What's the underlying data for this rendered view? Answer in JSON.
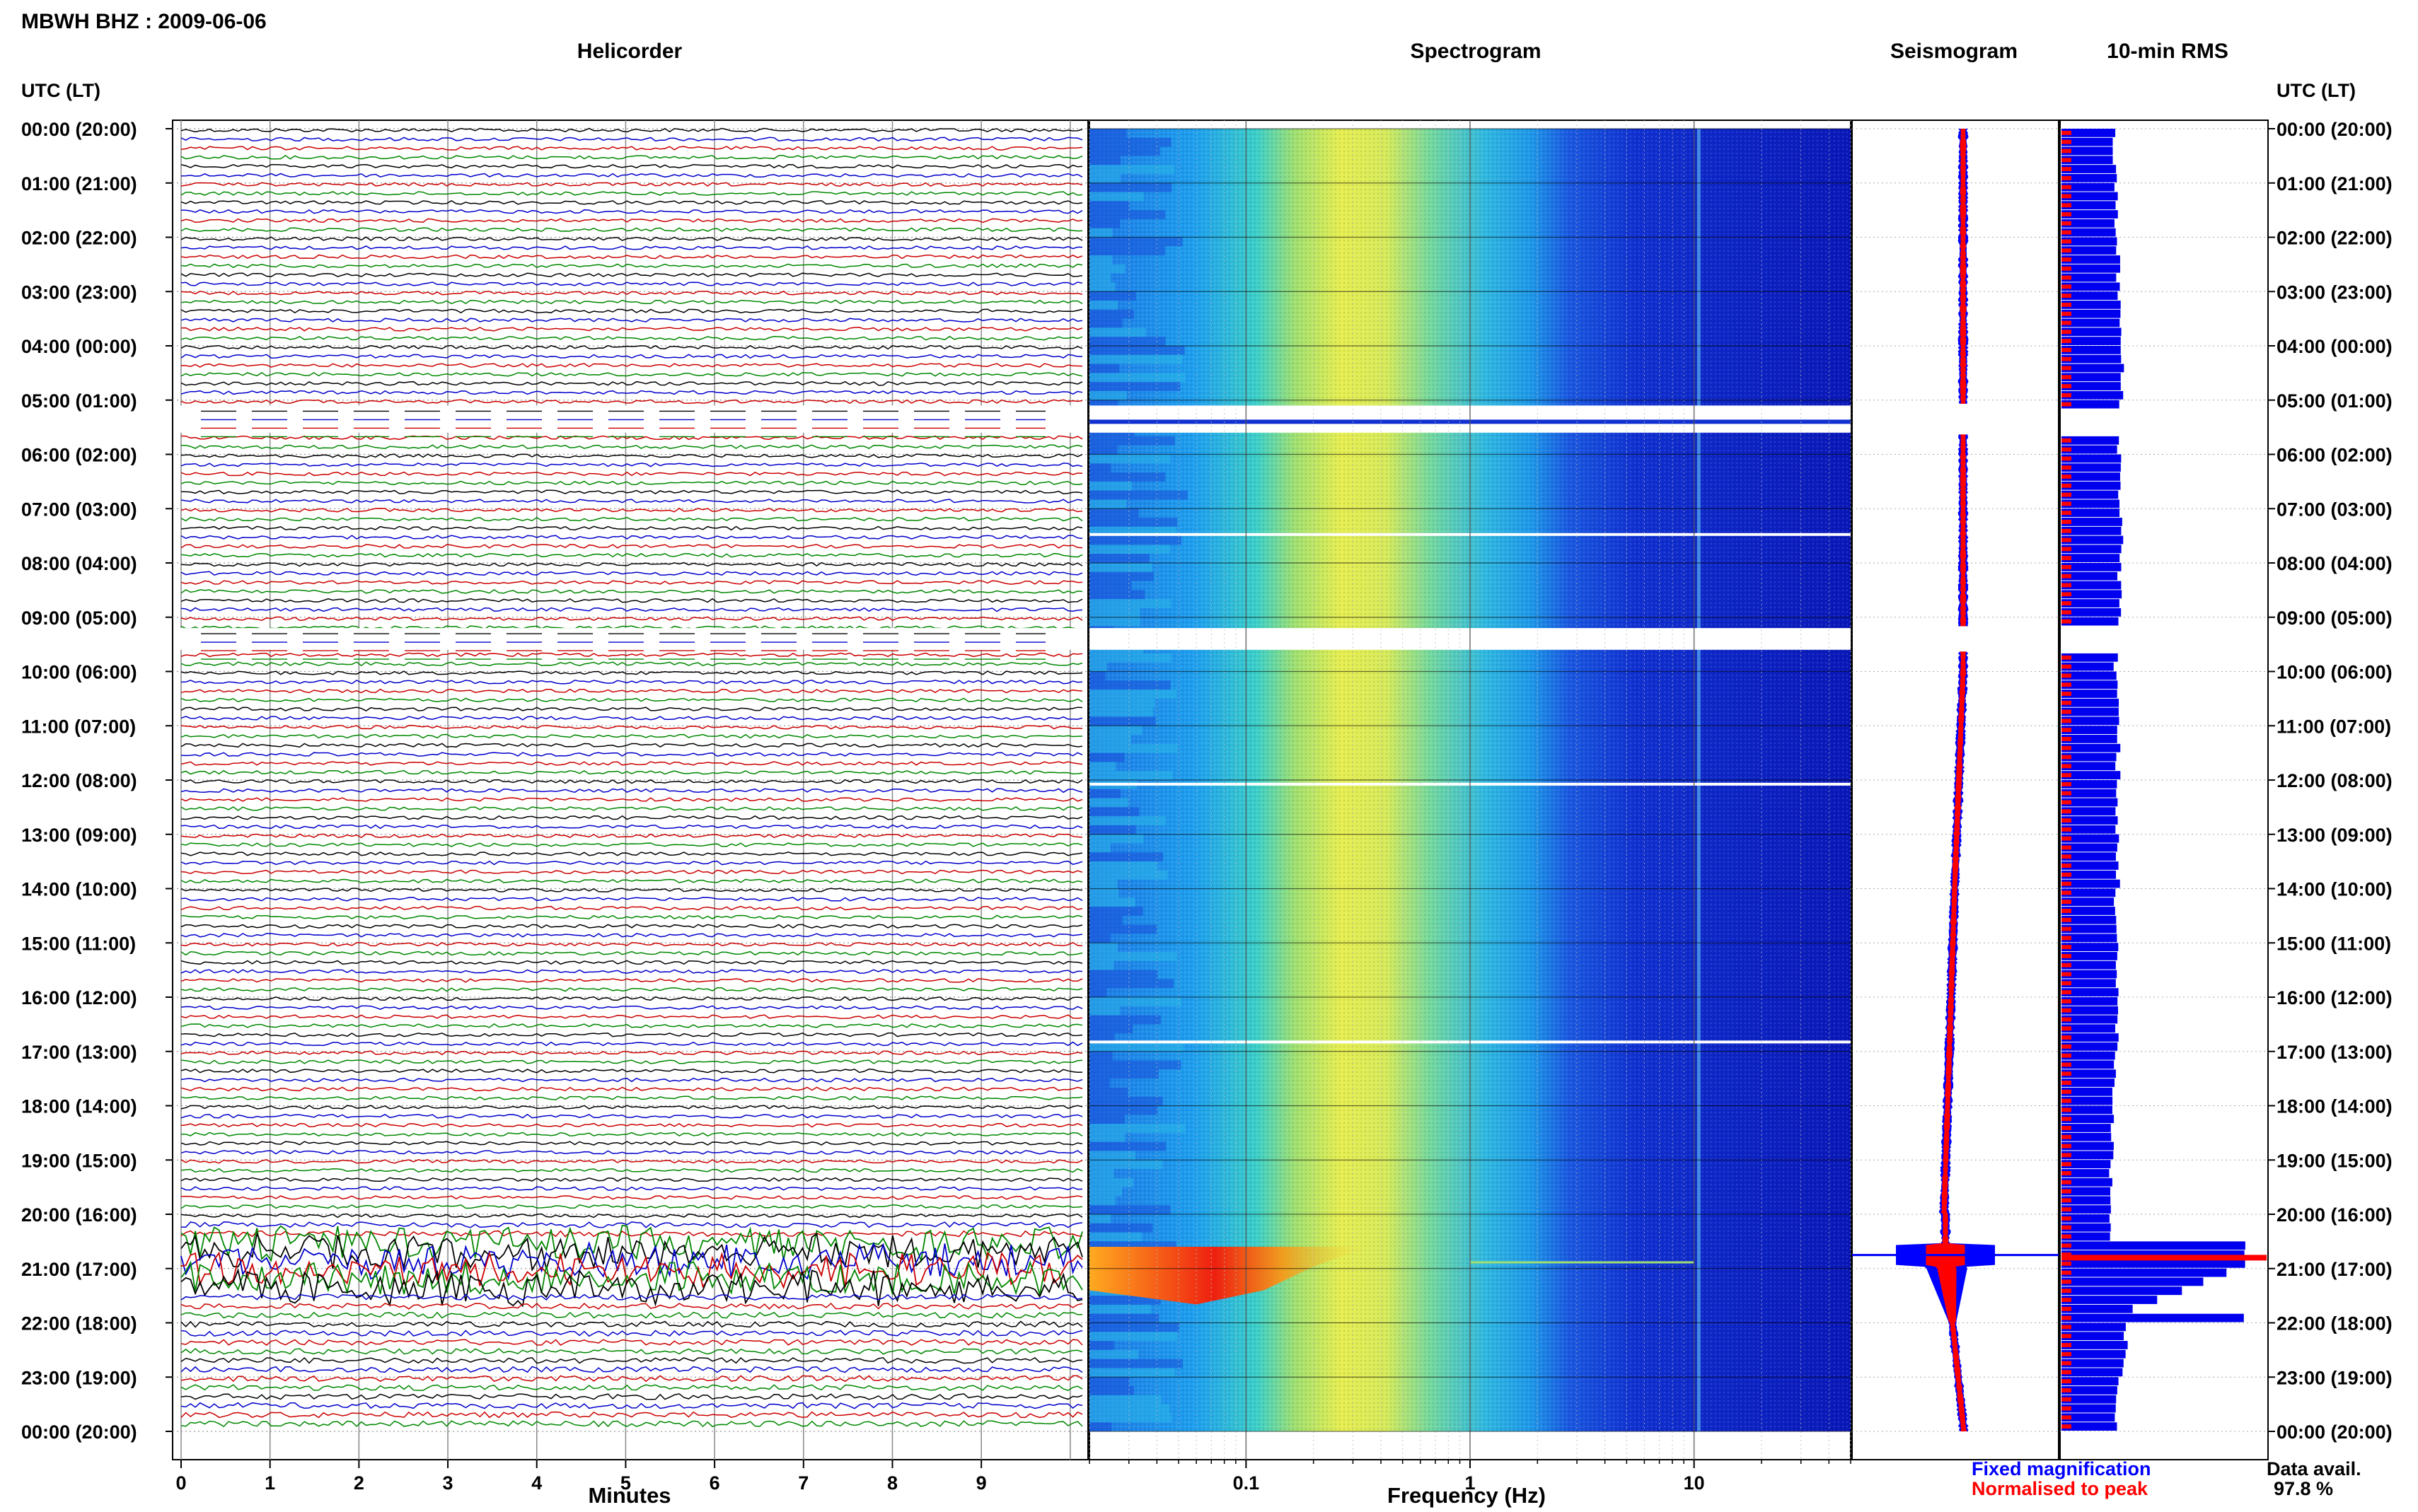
{
  "header": {
    "title": "MBWH BHZ : 2009-06-06"
  },
  "panels": {
    "helicorder": "Helicorder",
    "spectrogram": "Spectrogram",
    "seismogram": "Seismogram",
    "rms": "10-min RMS"
  },
  "axis": {
    "time_header_left": "UTC (LT)",
    "time_header_right": "UTC (LT)",
    "minutes_label": "Minutes",
    "frequency_label": "Frequency (Hz)"
  },
  "legend": {
    "fixed": "Fixed magnification",
    "normalised": "Normalised to peak",
    "fixed_color": "#0000ff",
    "normalised_color": "#ff0000"
  },
  "availability": {
    "label": "Data avail.",
    "value": "97.8 %"
  },
  "colors": {
    "trace_cycle": [
      "#000000",
      "#0000cc",
      "#cc0000",
      "#008800"
    ],
    "rms_fixed": "#0000ee",
    "rms_norm": "#ff0000"
  },
  "chart_data": [
    {
      "type": "line",
      "title": "Helicorder",
      "xlabel": "Minutes",
      "ylabel": "UTC (LT)",
      "x_ticks": [
        "0",
        "1",
        "2",
        "3",
        "4",
        "5",
        "6",
        "7",
        "8",
        "9"
      ],
      "y_ticks": [
        "00:00 (20:00)",
        "01:00 (21:00)",
        "02:00 (22:00)",
        "03:00 (23:00)",
        "04:00 (00:00)",
        "05:00 (01:00)",
        "06:00 (02:00)",
        "07:00 (03:00)",
        "08:00 (04:00)",
        "09:00 (05:00)",
        "10:00 (06:00)",
        "11:00 (07:00)",
        "12:00 (08:00)",
        "13:00 (09:00)",
        "14:00 (10:00)",
        "15:00 (11:00)",
        "16:00 (12:00)",
        "17:00 (13:00)",
        "18:00 (14:00)",
        "19:00 (15:00)",
        "20:00 (16:00)",
        "21:00 (17:00)",
        "22:00 (18:00)",
        "23:00 (19:00)",
        "00:00 (20:00)"
      ],
      "rows": 144,
      "minutes_per_row": 10,
      "xlim": [
        0,
        10
      ],
      "gaps_hours": [
        [
          5.1,
          5.6
        ],
        [
          9.2,
          9.6
        ]
      ],
      "event_hours": [
        20.5,
        21.4
      ]
    },
    {
      "type": "heatmap",
      "title": "Spectrogram",
      "xlabel": "Frequency (Hz)",
      "x_scale": "log",
      "xlim": [
        0.02,
        50
      ],
      "x_ticks": [
        "0.1",
        "1",
        "10"
      ],
      "y_hours": [
        0,
        24
      ],
      "peak_band_hz": [
        0.15,
        0.5
      ],
      "line_hz": 10.5,
      "event_hours": [
        20.6,
        21.4
      ],
      "gaps_hours": [
        [
          5.1,
          5.6
        ],
        [
          9.2,
          9.6
        ]
      ]
    },
    {
      "type": "area",
      "title": "Seismogram",
      "series": [
        {
          "name": "Fixed magnification",
          "color": "#0000ff"
        },
        {
          "name": "Normalised to peak",
          "color": "#ff0000"
        }
      ],
      "event_hours": [
        20.6,
        21.4
      ]
    },
    {
      "type": "bar",
      "title": "10-min RMS",
      "series": [
        {
          "name": "Fixed magnification",
          "color": "#0000ee"
        },
        {
          "name": "Normalised to peak",
          "color": "#ff0000"
        }
      ],
      "hourly_level": [
        0.29,
        0.3,
        0.31,
        0.32,
        0.33,
        0.32,
        0.32,
        0.33,
        0.32,
        0.3,
        0.31,
        0.31,
        0.3,
        0.31,
        0.3,
        0.3,
        0.31,
        0.29,
        0.28,
        0.27,
        0.27,
        1.0,
        0.35,
        0.3
      ],
      "peak_hour": 20.8
    }
  ]
}
